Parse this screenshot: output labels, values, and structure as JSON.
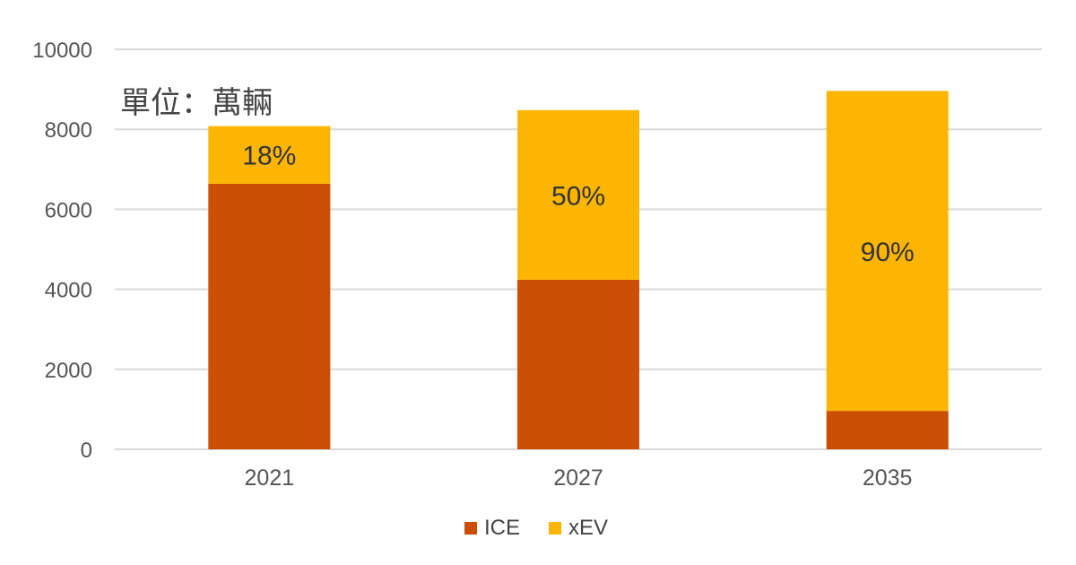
{
  "unit_note": "單位：萬輛",
  "legend": {
    "position": "bottom"
  },
  "colors": {
    "ICE": "#cc4e04",
    "xEV": "#fcb502",
    "grid": "#d9d9d9"
  },
  "chart_data": {
    "type": "bar",
    "stacked": true,
    "categories": [
      "2021",
      "2027",
      "2035"
    ],
    "series": [
      {
        "name": "ICE",
        "values": [
          6640,
          4240,
          960
        ]
      },
      {
        "name": "xEV",
        "values": [
          1440,
          4240,
          8000
        ]
      }
    ],
    "data_labels": [
      "18%",
      "50%",
      "90%"
    ],
    "yticks": [
      "0",
      "2000",
      "4000",
      "6000",
      "8000",
      "10000"
    ],
    "ylim": [
      0,
      10000
    ],
    "grid": true
  }
}
